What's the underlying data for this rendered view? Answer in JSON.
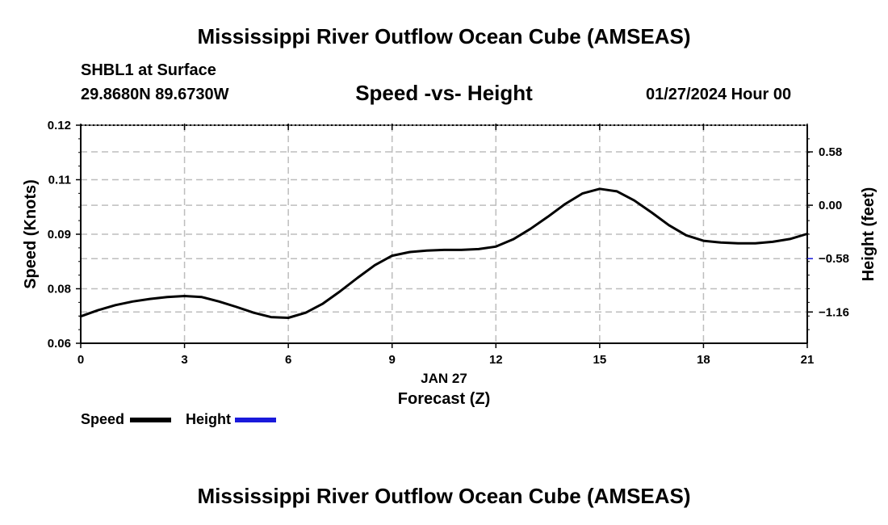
{
  "header": {
    "title": "Mississippi River Outflow Ocean Cube (AMSEAS)",
    "station": "SHBL1 at Surface",
    "coordinates": "29.8680N  89.6730W",
    "datetime": "01/27/2024 Hour 00",
    "footer_title": "Mississippi River Outflow Ocean Cube (AMSEAS)"
  },
  "legend": {
    "speed_label": "Speed",
    "height_label": "Height",
    "speed_color": "#000000",
    "height_color": "#1a1adb"
  },
  "chart_data": {
    "type": "line",
    "title": "Speed -vs- Height",
    "xlabel": "Forecast (Z)",
    "xlabel_date": "JAN 27",
    "ylabel": "Speed (Knots)",
    "y2label": "Height (feet)",
    "xlim": [
      0,
      21
    ],
    "ylim": [
      0.06,
      0.12
    ],
    "x_ticks": [
      "0",
      "3",
      "6",
      "9",
      "12",
      "15",
      "18",
      "21"
    ],
    "y_ticks": [
      "0.06",
      "0.08",
      "0.09",
      "0.11",
      "0.12"
    ],
    "y_tick_values": [
      0.06,
      0.075,
      0.09,
      0.105,
      0.12
    ],
    "y2_ticks": [
      "0.58",
      "0.00",
      "−0.58",
      "−1.16"
    ],
    "y2_tick_values": [
      0.58,
      0.0,
      -0.58,
      -1.16
    ],
    "y2_range": [
      -1.5,
      0.87
    ],
    "grid": true,
    "series": [
      {
        "name": "Speed",
        "color": "#000000",
        "x": [
          0,
          0.5,
          1,
          1.5,
          2,
          2.5,
          3,
          3.5,
          4,
          4.5,
          5,
          5.5,
          6,
          6.5,
          7,
          7.5,
          8,
          8.5,
          9,
          9.5,
          10,
          10.5,
          11,
          11.5,
          12,
          12.5,
          13,
          13.5,
          14,
          14.5,
          15,
          15.5,
          16,
          16.5,
          17,
          17.5,
          18,
          18.5,
          19,
          19.5,
          20,
          20.5,
          21
        ],
        "values": [
          0.0674,
          0.0691,
          0.0705,
          0.0715,
          0.0722,
          0.0727,
          0.073,
          0.0727,
          0.0715,
          0.07,
          0.0684,
          0.0672,
          0.067,
          0.0684,
          0.0709,
          0.0743,
          0.078,
          0.0815,
          0.0841,
          0.0851,
          0.0855,
          0.0857,
          0.0857,
          0.0859,
          0.0866,
          0.0886,
          0.0915,
          0.0948,
          0.0983,
          0.1012,
          0.1025,
          0.1018,
          0.0993,
          0.096,
          0.0925,
          0.0897,
          0.0882,
          0.0877,
          0.0875,
          0.0875,
          0.0879,
          0.0887,
          0.0901
        ]
      }
    ]
  }
}
